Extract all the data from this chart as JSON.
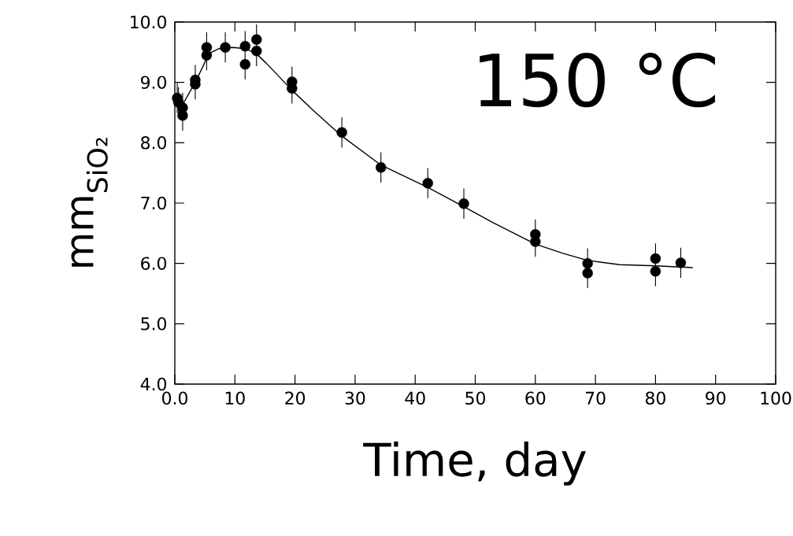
{
  "chart_data": {
    "type": "scatter",
    "xlabel": "Time, day",
    "ylabel": "mm$_{SiO₂}$",
    "annotations": [
      "150 °C"
    ],
    "xlim": [
      0,
      100
    ],
    "ylim": [
      4,
      10
    ],
    "xticks": [
      {
        "value": 0,
        "label": "0.0"
      },
      10,
      20,
      30,
      40,
      50,
      60,
      70,
      80,
      90,
      100
    ],
    "yticks": [
      {
        "value": 4,
        "label": "4.0"
      },
      {
        "value": 5,
        "label": "5.0"
      },
      {
        "value": 6,
        "label": "6.0"
      },
      {
        "value": 7,
        "label": "7.0"
      },
      {
        "value": 8,
        "label": "8.0"
      },
      {
        "value": 9,
        "label": "9.0"
      },
      {
        "value": 10,
        "label": "10.0"
      }
    ],
    "series": [
      {
        "color": "#000000",
        "marker": "circle",
        "x": [
          0.4,
          0.6,
          1.3,
          1.3,
          3.4,
          3.4,
          5.3,
          5.3,
          8.4,
          11.7,
          11.7,
          13.6,
          13.6,
          19.5,
          19.5,
          27.8,
          34.3,
          42.1,
          48.1,
          60.0,
          60.0,
          68.7,
          68.7,
          80.0,
          80.0,
          84.2
        ],
        "values": [
          8.74,
          8.67,
          8.58,
          8.45,
          9.04,
          8.97,
          9.58,
          9.45,
          9.58,
          9.6,
          9.3,
          9.71,
          9.52,
          9.01,
          8.9,
          8.17,
          7.59,
          7.33,
          6.99,
          6.48,
          6.36,
          6.0,
          5.84,
          6.08,
          5.87,
          6.01
        ],
        "errors": [
          0.25,
          0.25,
          [
            8.2,
            8.83
          ],
          null,
          [
            8.72,
            9.29
          ],
          null,
          [
            9.2,
            9.83
          ],
          null,
          0.25,
          [
            9.05,
            9.85
          ],
          null,
          [
            9.27,
            9.96
          ],
          null,
          [
            8.65,
            9.26
          ],
          null,
          0.25,
          0.25,
          0.25,
          0.25,
          [
            6.11,
            6.73
          ],
          null,
          [
            5.59,
            6.25
          ],
          null,
          [
            5.62,
            6.33
          ],
          null,
          0.25
        ]
      },
      {
        "type": "line",
        "color": "#000000",
        "marker": "none",
        "x": [
          0.5,
          1.3,
          3.5,
          5.7,
          7.4,
          9.6,
          11.7,
          13.5,
          15.2,
          19.5,
          23.0,
          27.8,
          34.3,
          42.1,
          48.1,
          52.9,
          60.0,
          64.5,
          68.7,
          74.0,
          80.0,
          86.2
        ],
        "values": [
          8.7,
          8.63,
          9.02,
          9.48,
          9.56,
          9.58,
          9.56,
          9.48,
          9.32,
          8.87,
          8.54,
          8.11,
          7.63,
          7.26,
          6.94,
          6.68,
          6.32,
          6.17,
          6.05,
          5.98,
          5.96,
          5.93
        ]
      }
    ]
  }
}
